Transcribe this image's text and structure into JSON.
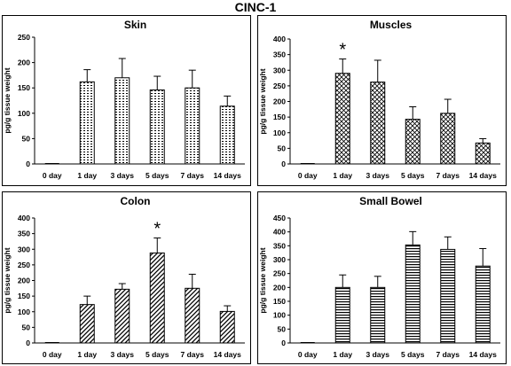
{
  "figure_title": "CINC-1",
  "chart_data": [
    {
      "type": "bar",
      "title": "Skin",
      "xlabel": "",
      "ylabel": "pg/g  tissue weight",
      "categories": [
        "0 day",
        "1 day",
        "3 days",
        "5 days",
        "7 days",
        "14 days"
      ],
      "values": [
        0,
        162,
        170,
        146,
        150,
        114
      ],
      "errors": [
        0,
        24,
        38,
        27,
        35,
        20
      ],
      "ylim": [
        0,
        250
      ],
      "yticks": [
        "0",
        "50",
        "100",
        "150",
        "200",
        "250"
      ],
      "pattern": "dots",
      "annotations": []
    },
    {
      "type": "bar",
      "title": "Muscles",
      "xlabel": "",
      "ylabel": "pg/g  tissue weight",
      "categories": [
        "0 day",
        "1 day",
        "3 days",
        "5 days",
        "7 days",
        "14 days"
      ],
      "values": [
        0,
        290,
        262,
        143,
        162,
        67
      ],
      "errors": [
        0,
        46,
        70,
        40,
        45,
        14
      ],
      "ylim": [
        0,
        400
      ],
      "yticks": [
        "0",
        "50",
        "100",
        "150",
        "200",
        "250",
        "300",
        "350",
        "400"
      ],
      "pattern": "crosshatch",
      "annotations": [
        {
          "category": "1 day",
          "text": "*"
        }
      ]
    },
    {
      "type": "bar",
      "title": "Colon",
      "xlabel": "",
      "ylabel": "pg/g  tissue weight",
      "categories": [
        "0 day",
        "1 day",
        "3 days",
        "5 days",
        "7 days",
        "14 days"
      ],
      "values": [
        0,
        123,
        172,
        288,
        175,
        101
      ],
      "errors": [
        0,
        27,
        18,
        48,
        45,
        18
      ],
      "ylim": [
        0,
        400
      ],
      "yticks": [
        "0",
        "50",
        "100",
        "150",
        "200",
        "250",
        "300",
        "350",
        "400"
      ],
      "pattern": "diagonal",
      "annotations": [
        {
          "category": "5 days",
          "text": "*"
        }
      ]
    },
    {
      "type": "bar",
      "title": "Small Bowel",
      "xlabel": "",
      "ylabel": "pg/g  tissue weight",
      "categories": [
        "0 day",
        "1 day",
        "3 days",
        "5 days",
        "7 days",
        "14 days"
      ],
      "values": [
        0,
        200,
        200,
        353,
        337,
        277
      ],
      "errors": [
        0,
        45,
        40,
        48,
        45,
        63
      ],
      "ylim": [
        0,
        450
      ],
      "yticks": [
        "0",
        "50",
        "100",
        "150",
        "200",
        "250",
        "300",
        "350",
        "400",
        "450"
      ],
      "pattern": "horizontal",
      "annotations": []
    }
  ]
}
